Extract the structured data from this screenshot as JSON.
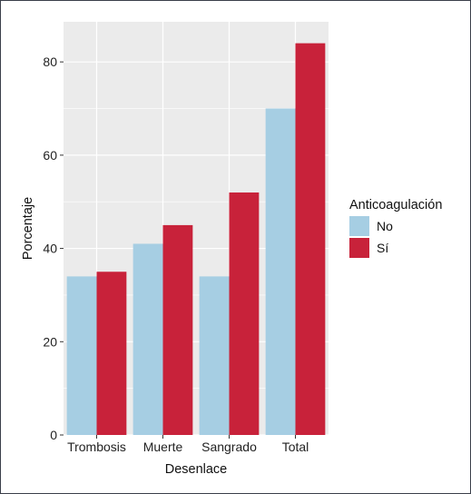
{
  "chart_data": {
    "type": "bar",
    "xlabel": "Desenlace",
    "ylabel": "Porcentaje",
    "categories": [
      "Trombosis",
      "Muerte",
      "Sangrado",
      "Total"
    ],
    "series": [
      {
        "name": "No",
        "values": [
          34,
          41,
          34,
          70
        ],
        "color": "#a6cee3"
      },
      {
        "name": "Sí",
        "values": [
          35,
          45,
          52,
          84
        ],
        "color": "#c8223a"
      }
    ],
    "ylim": [
      0,
      88.6
    ],
    "yticks": [
      0,
      20,
      40,
      60,
      80
    ],
    "grid": true,
    "panel_background": "#ebebeb",
    "legend": {
      "title": "Anticoagulación",
      "position": "right"
    }
  }
}
